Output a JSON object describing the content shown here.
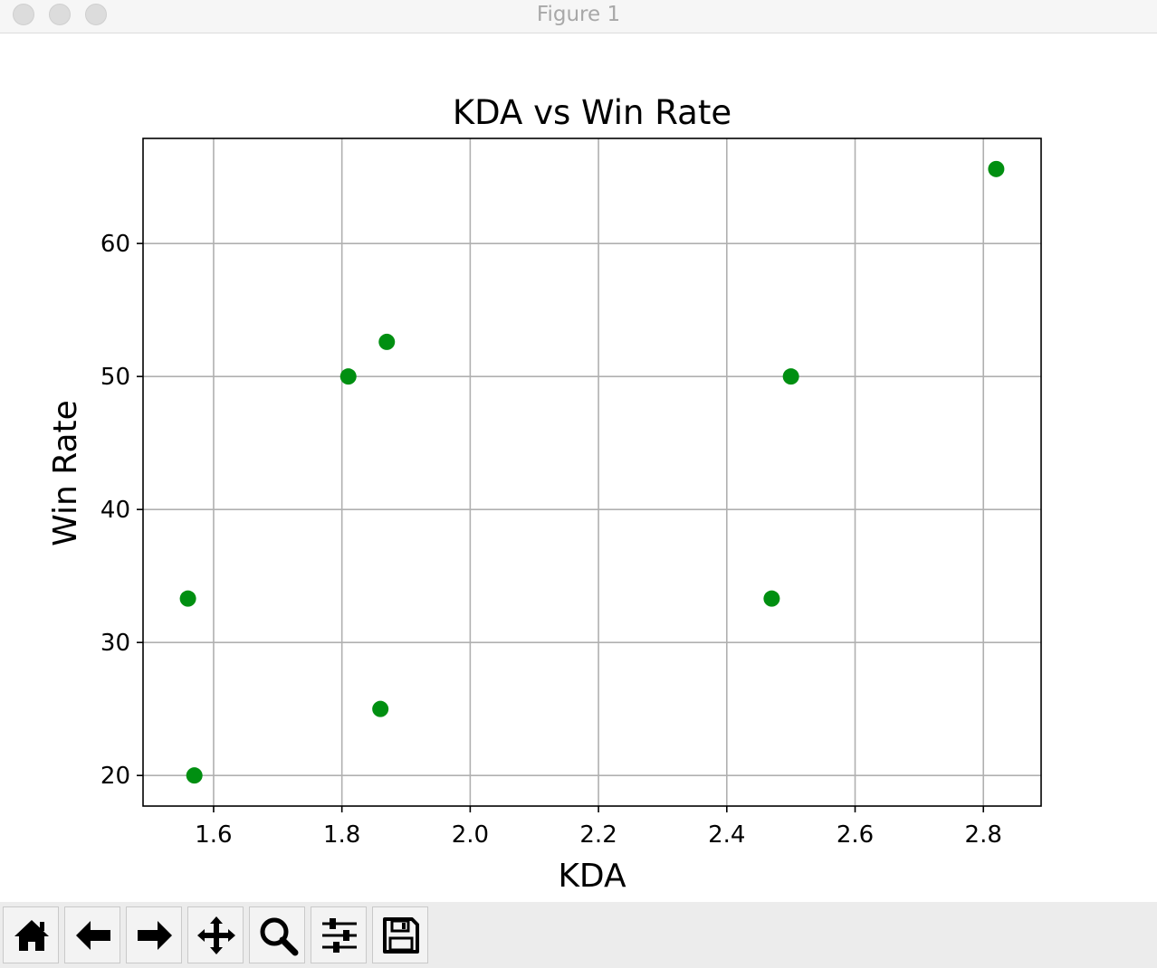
{
  "window": {
    "title": "Figure 1"
  },
  "toolbar": {
    "buttons": [
      {
        "icon": "home-icon"
      },
      {
        "icon": "back-arrow-icon"
      },
      {
        "icon": "forward-arrow-icon"
      },
      {
        "icon": "pan-icon"
      },
      {
        "icon": "zoom-icon"
      },
      {
        "icon": "subplots-config-icon"
      },
      {
        "icon": "save-icon"
      }
    ]
  },
  "chart_data": {
    "type": "scatter",
    "title": "KDA vs Win Rate",
    "xlabel": "KDA",
    "ylabel": "Win Rate",
    "xlim": [
      1.49,
      2.89
    ],
    "ylim": [
      17.7,
      67.9
    ],
    "x_ticks": [
      1.6,
      1.8,
      2.0,
      2.2,
      2.4,
      2.6,
      2.8
    ],
    "x_tick_labels": [
      "1.6",
      "1.8",
      "2.0",
      "2.2",
      "2.4",
      "2.6",
      "2.8"
    ],
    "y_ticks": [
      20,
      30,
      40,
      50,
      60
    ],
    "y_tick_labels": [
      "20",
      "30",
      "40",
      "50",
      "60"
    ],
    "grid": true,
    "color": "#008f11",
    "points": [
      {
        "x": 1.56,
        "y": 33.3
      },
      {
        "x": 1.57,
        "y": 20.0
      },
      {
        "x": 1.81,
        "y": 50.0
      },
      {
        "x": 1.86,
        "y": 25.0
      },
      {
        "x": 1.87,
        "y": 52.6
      },
      {
        "x": 2.47,
        "y": 33.3
      },
      {
        "x": 2.5,
        "y": 50.0
      },
      {
        "x": 2.82,
        "y": 65.6
      }
    ]
  }
}
